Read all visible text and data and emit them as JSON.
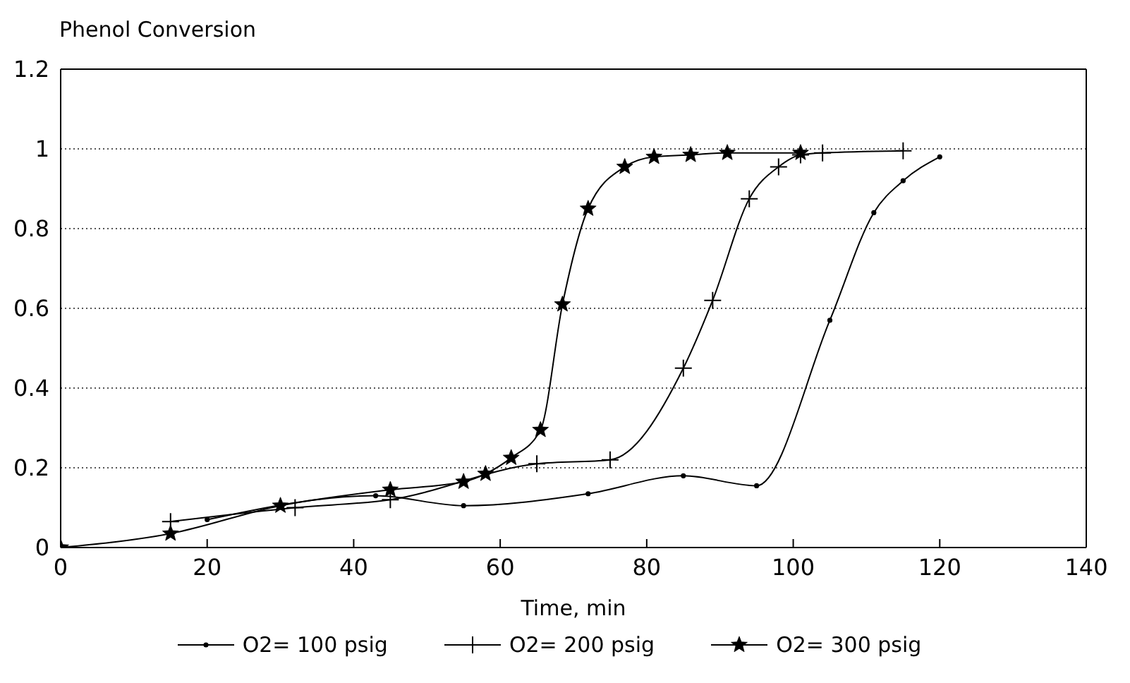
{
  "chart_data": {
    "type": "line",
    "ylabel": "Phenol Conversion",
    "xlabel": "Time, min",
    "xlim": [
      0,
      140
    ],
    "xticks": [
      0,
      20,
      40,
      60,
      80,
      100,
      120,
      140
    ],
    "ylim": [
      0,
      1.2
    ],
    "yticks": [
      0,
      0.2,
      0.4,
      0.6,
      0.8,
      1,
      1.2
    ],
    "grid": "y",
    "legend": "bottom",
    "line_style": "solid",
    "series": [
      {
        "name": "O2= 100 psig",
        "color": "#000000",
        "marker": "circle",
        "x": [
          20,
          43,
          55,
          72,
          85,
          95,
          105,
          111,
          115,
          120
        ],
        "values": [
          0.07,
          0.13,
          0.105,
          0.135,
          0.18,
          0.155,
          0.57,
          0.84,
          0.92,
          0.98
        ]
      },
      {
        "name": "O2= 200 psig",
        "color": "#000000",
        "marker": "cross",
        "x": [
          15,
          32,
          45,
          65,
          75,
          85,
          89,
          94,
          98,
          101,
          104,
          115
        ],
        "values": [
          0.065,
          0.1,
          0.12,
          0.21,
          0.22,
          0.45,
          0.62,
          0.875,
          0.955,
          0.985,
          0.99,
          0.995
        ]
      },
      {
        "name": "O2= 300 psig",
        "color": "#000000",
        "marker": "star",
        "x": [
          0,
          15,
          30,
          45,
          55,
          58,
          61.5,
          65.5,
          68.5,
          72,
          77,
          81,
          86,
          91,
          101
        ],
        "values": [
          0,
          0.035,
          0.105,
          0.145,
          0.165,
          0.185,
          0.225,
          0.295,
          0.61,
          0.85,
          0.955,
          0.98,
          0.985,
          0.99,
          0.99
        ]
      }
    ]
  }
}
